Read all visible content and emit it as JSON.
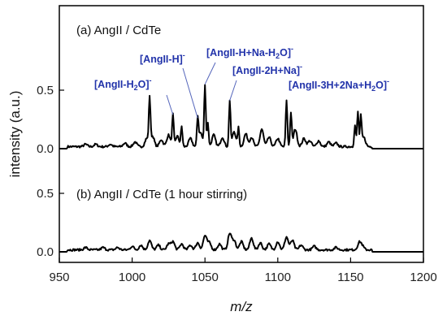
{
  "chart_data": {
    "type": "line",
    "xlabel": "m/z",
    "ylabel": "intensity (a.u.)",
    "xlim": [
      950,
      1200
    ],
    "x_ticks": [
      950,
      1000,
      1050,
      1100,
      1150,
      1200
    ],
    "y_ticks_label": [
      "0.0",
      "0.5"
    ],
    "grid": false,
    "panels": [
      {
        "label": "(a) AngII / CdTe",
        "ylim": [
          -0.02,
          0.78
        ],
        "y_ticks": [
          0.0,
          0.5
        ],
        "peaks": [
          {
            "x": 968,
            "y": 0.02
          },
          {
            "x": 975,
            "y": 0.02
          },
          {
            "x": 985,
            "y": 0.02
          },
          {
            "x": 995,
            "y": 0.03
          },
          {
            "x": 1002,
            "y": 0.04
          },
          {
            "x": 1010,
            "y": 0.07
          },
          {
            "x": 1012,
            "y": 0.4
          },
          {
            "x": 1014,
            "y": 0.09
          },
          {
            "x": 1020,
            "y": 0.06
          },
          {
            "x": 1025,
            "y": 0.1
          },
          {
            "x": 1028,
            "y": 0.27
          },
          {
            "x": 1031,
            "y": 0.09
          },
          {
            "x": 1034,
            "y": 0.17
          },
          {
            "x": 1040,
            "y": 0.07
          },
          {
            "x": 1045,
            "y": 0.24
          },
          {
            "x": 1047,
            "y": 0.12
          },
          {
            "x": 1050,
            "y": 0.53
          },
          {
            "x": 1052,
            "y": 0.2
          },
          {
            "x": 1056,
            "y": 0.1
          },
          {
            "x": 1062,
            "y": 0.08
          },
          {
            "x": 1067,
            "y": 0.39
          },
          {
            "x": 1070,
            "y": 0.13
          },
          {
            "x": 1073,
            "y": 0.16
          },
          {
            "x": 1078,
            "y": 0.11
          },
          {
            "x": 1082,
            "y": 0.08
          },
          {
            "x": 1089,
            "y": 0.15
          },
          {
            "x": 1094,
            "y": 0.08
          },
          {
            "x": 1100,
            "y": 0.07
          },
          {
            "x": 1106,
            "y": 0.4
          },
          {
            "x": 1109,
            "y": 0.29
          },
          {
            "x": 1112,
            "y": 0.15
          },
          {
            "x": 1118,
            "y": 0.07
          },
          {
            "x": 1122,
            "y": 0.05
          },
          {
            "x": 1128,
            "y": 0.05
          },
          {
            "x": 1135,
            "y": 0.04
          },
          {
            "x": 1140,
            "y": 0.03
          },
          {
            "x": 1153,
            "y": 0.18
          },
          {
            "x": 1155,
            "y": 0.3
          },
          {
            "x": 1157,
            "y": 0.25
          },
          {
            "x": 1159,
            "y": 0.08
          }
        ],
        "annotations": [
          {
            "text": "[AngII-H2O]-",
            "peak_x": 1028
          },
          {
            "text": "[AngII-H]-",
            "peak_x": 1045
          },
          {
            "text": "[AngII-H+Na-H2O]-",
            "peak_x": 1050
          },
          {
            "text": "[AngII-2H+Na]-",
            "peak_x": 1067
          },
          {
            "text": "[AngII-3H+2Na+H2O]-",
            "peak_x": 1106
          }
        ]
      },
      {
        "label": "(b) AngII / CdTe (1 hour stirring)",
        "ylim": [
          -0.02,
          0.78
        ],
        "y_ticks": [
          0.0,
          0.5
        ],
        "peaks": [
          {
            "x": 968,
            "y": 0.02
          },
          {
            "x": 980,
            "y": 0.02
          },
          {
            "x": 990,
            "y": 0.02
          },
          {
            "x": 1000,
            "y": 0.03
          },
          {
            "x": 1006,
            "y": 0.04
          },
          {
            "x": 1012,
            "y": 0.08
          },
          {
            "x": 1018,
            "y": 0.04
          },
          {
            "x": 1025,
            "y": 0.05
          },
          {
            "x": 1028,
            "y": 0.07
          },
          {
            "x": 1034,
            "y": 0.05
          },
          {
            "x": 1040,
            "y": 0.04
          },
          {
            "x": 1045,
            "y": 0.06
          },
          {
            "x": 1050,
            "y": 0.12
          },
          {
            "x": 1053,
            "y": 0.06
          },
          {
            "x": 1060,
            "y": 0.05
          },
          {
            "x": 1067,
            "y": 0.14
          },
          {
            "x": 1070,
            "y": 0.08
          },
          {
            "x": 1075,
            "y": 0.07
          },
          {
            "x": 1082,
            "y": 0.1
          },
          {
            "x": 1088,
            "y": 0.06
          },
          {
            "x": 1094,
            "y": 0.05
          },
          {
            "x": 1100,
            "y": 0.07
          },
          {
            "x": 1106,
            "y": 0.11
          },
          {
            "x": 1110,
            "y": 0.08
          },
          {
            "x": 1116,
            "y": 0.04
          },
          {
            "x": 1125,
            "y": 0.03
          },
          {
            "x": 1140,
            "y": 0.02
          },
          {
            "x": 1156,
            "y": 0.06
          },
          {
            "x": 1158,
            "y": 0.03
          }
        ]
      }
    ]
  }
}
